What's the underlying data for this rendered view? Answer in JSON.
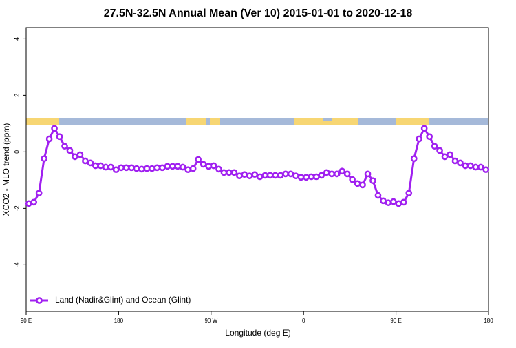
{
  "chart_data": {
    "type": "line",
    "title": "27.5N-32.5N Annual Mean (Ver 10)   2015-01-01 to 2020-12-18",
    "x_label": "Longitude (deg E)",
    "y_label": "XCO2 - MLO trend (ppm)",
    "xlim": [
      90,
      540
    ],
    "ylim": [
      -5.65,
      4.4
    ],
    "xticks": [
      {
        "value": 90,
        "label": "90 E"
      },
      180,
      {
        "value": 270,
        "label": "90 W"
      },
      {
        "value": 360,
        "label": "0"
      },
      {
        "value": 450,
        "label": "90 E"
      },
      {
        "value": 540,
        "label": "180"
      }
    ],
    "yticks": [
      -4,
      -2,
      0,
      2,
      4
    ],
    "legend": "bottom-left",
    "x": [
      92.5,
      97.5,
      102.5,
      107.5,
      112.5,
      117.5,
      122.5,
      127.5,
      132.5,
      137.5,
      142.5,
      147.5,
      152.5,
      157.5,
      162.5,
      167.5,
      172.5,
      177.5,
      182.5,
      187.5,
      192.5,
      197.5,
      202.5,
      207.5,
      212.5,
      217.5,
      222.5,
      227.5,
      232.5,
      237.5,
      242.5,
      247.5,
      252.5,
      257.5,
      262.5,
      267.5,
      272.5,
      277.5,
      282.5,
      287.5,
      292.5,
      297.5,
      302.5,
      307.5,
      312.5,
      317.5,
      322.5,
      327.5,
      332.5,
      337.5,
      342.5,
      347.5,
      352.5,
      357.5,
      362.5,
      367.5,
      372.5,
      377.5,
      382.5,
      387.5,
      392.5,
      397.5,
      402.5,
      407.5,
      412.5,
      417.5,
      422.5,
      427.5,
      432.5,
      437.5,
      442.5,
      447.5,
      452.5,
      457.5,
      462.5,
      467.5,
      472.5,
      477.5,
      482.5,
      487.5,
      492.5,
      497.5,
      502.5,
      507.5,
      512.5,
      517.5,
      522.5,
      527.5,
      532.5,
      537.5
    ],
    "series": [
      {
        "name": "Land (Nadir&Glint) and Ocean (Glint)",
        "color": "#a020f0",
        "values": [
          -1.83,
          -1.78,
          -1.46,
          -0.24,
          0.46,
          0.83,
          0.54,
          0.2,
          0.05,
          -0.17,
          -0.1,
          -0.32,
          -0.39,
          -0.49,
          -0.49,
          -0.54,
          -0.54,
          -0.63,
          -0.56,
          -0.56,
          -0.56,
          -0.59,
          -0.61,
          -0.59,
          -0.59,
          -0.56,
          -0.56,
          -0.51,
          -0.51,
          -0.51,
          -0.54,
          -0.63,
          -0.59,
          -0.27,
          -0.44,
          -0.51,
          -0.49,
          -0.61,
          -0.73,
          -0.73,
          -0.73,
          -0.85,
          -0.8,
          -0.85,
          -0.8,
          -0.88,
          -0.83,
          -0.83,
          -0.83,
          -0.83,
          -0.78,
          -0.78,
          -0.85,
          -0.9,
          -0.9,
          -0.88,
          -0.88,
          -0.83,
          -0.73,
          -0.78,
          -0.78,
          -0.68,
          -0.78,
          -0.98,
          -1.12,
          -1.17,
          -0.78,
          -1.02,
          -1.54,
          -1.73,
          -1.8,
          -1.76,
          -1.83,
          -1.78,
          -1.46,
          -0.24,
          0.46,
          0.83,
          0.54,
          0.2,
          0.05,
          -0.17,
          -0.1,
          -0.32,
          -0.39,
          -0.49,
          -0.49,
          -0.54,
          -0.54,
          -0.63
        ]
      }
    ]
  }
}
